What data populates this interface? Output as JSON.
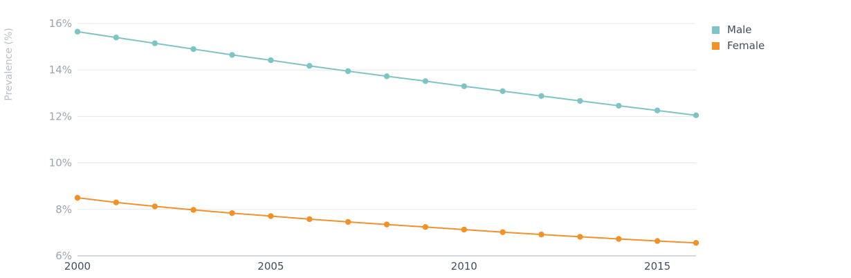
{
  "chart_data": {
    "type": "line",
    "ylabel": "Prevalence (%)",
    "xlabel": "",
    "title": "",
    "x": [
      2000,
      2001,
      2002,
      2003,
      2004,
      2005,
      2006,
      2007,
      2008,
      2009,
      2010,
      2011,
      2012,
      2013,
      2014,
      2015,
      2016
    ],
    "xlim": [
      2000,
      2016
    ],
    "ylim": [
      6,
      16
    ],
    "x_ticks": [
      2000,
      2005,
      2010,
      2015
    ],
    "x_tick_labels": [
      "2000",
      "2005",
      "2010",
      "2015"
    ],
    "y_ticks": [
      6,
      8,
      10,
      12,
      14,
      16
    ],
    "y_tick_labels": [
      "6%",
      "8%",
      "10%",
      "12%",
      "14%",
      "16%"
    ],
    "grid": true,
    "legend_position": "top-right",
    "series": [
      {
        "name": "Male",
        "color": "#7fc4c4",
        "values": [
          15.65,
          15.4,
          15.15,
          14.9,
          14.65,
          14.42,
          14.18,
          13.95,
          13.73,
          13.52,
          13.3,
          13.09,
          12.88,
          12.67,
          12.46,
          12.26,
          12.05
        ]
      },
      {
        "name": "Female",
        "color": "#f0922b",
        "values": [
          8.5,
          8.3,
          8.13,
          7.98,
          7.84,
          7.71,
          7.58,
          7.46,
          7.35,
          7.24,
          7.13,
          7.02,
          6.92,
          6.82,
          6.73,
          6.64,
          6.56
        ]
      }
    ]
  }
}
